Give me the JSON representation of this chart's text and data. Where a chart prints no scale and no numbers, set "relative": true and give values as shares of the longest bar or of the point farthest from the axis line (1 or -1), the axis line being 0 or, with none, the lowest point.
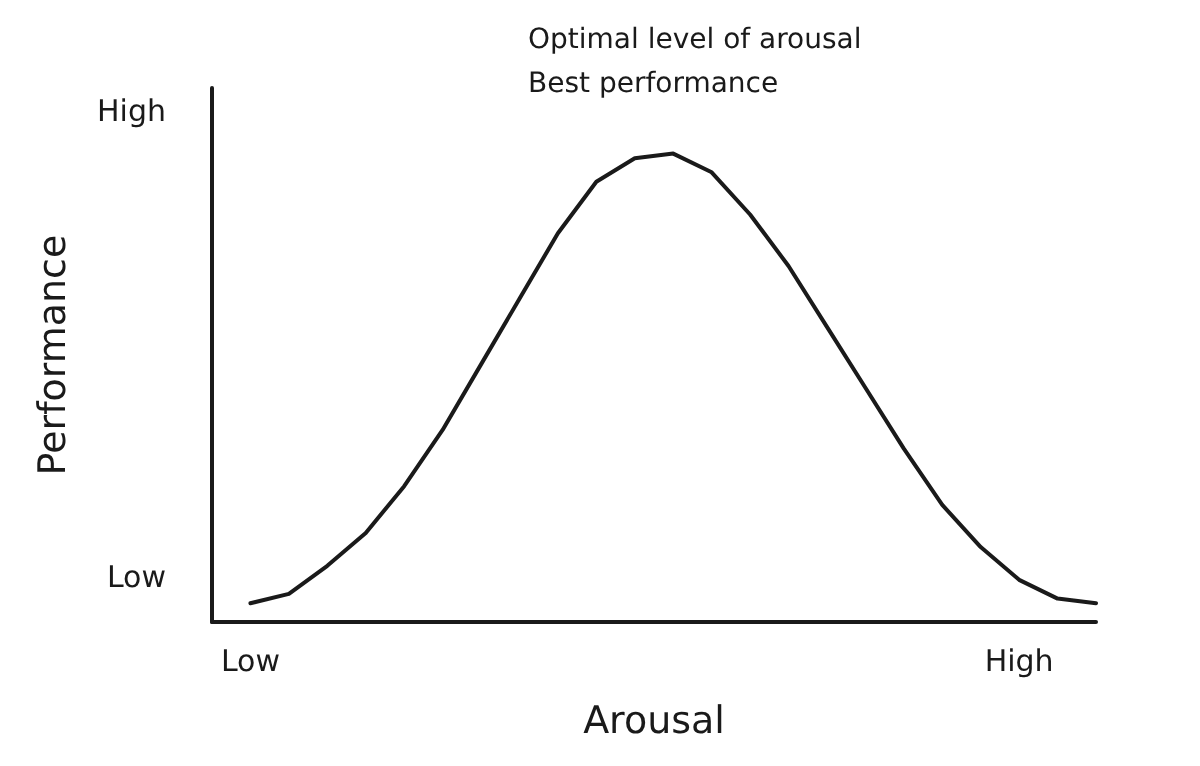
{
  "chart_data": {
    "type": "line",
    "xlabel": "Arousal",
    "ylabel": "Performance",
    "relative": true,
    "annotations": [
      "Optimal level of arousal",
      "Best performance",
      "High",
      "Low"
    ],
    "categories": [
      null,
      "Low",
      null,
      null,
      null,
      null,
      null,
      null,
      null,
      null,
      null,
      null,
      null,
      null,
      null,
      null,
      null,
      null,
      null,
      null,
      null,
      "High",
      null,
      null
    ],
    "series": [
      {
        "color": "#1a1a1a",
        "values": [
          null,
          0.04,
          0.06,
          0.12,
          0.19,
          0.29,
          0.41,
          0.55,
          0.69,
          0.83,
          0.94,
          0.99,
          1.0,
          0.96,
          0.87,
          0.76,
          0.63,
          0.5,
          0.37,
          0.25,
          0.16,
          0.09,
          0.05,
          0.04
        ]
      }
    ],
    "grid": false,
    "marker": "none",
    "line_style": "solid"
  }
}
